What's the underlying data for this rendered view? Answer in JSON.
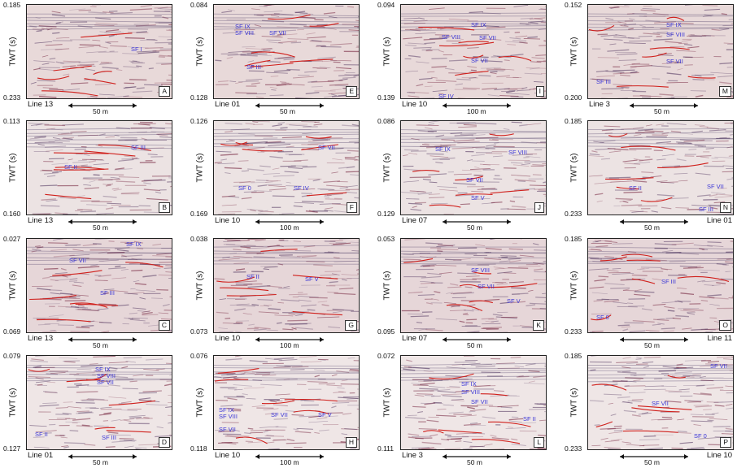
{
  "y_axis_label": "TWT (s)",
  "panels": [
    {
      "id": "A",
      "top": "0.185",
      "bottom": "0.233",
      "line": "Line 13",
      "scale": "50 m",
      "units": [
        "SF I"
      ]
    },
    {
      "id": "B",
      "top": "0.113",
      "bottom": "0.160",
      "line": "Line 13",
      "scale": "50 m",
      "units": [
        "SF III",
        "SF II"
      ]
    },
    {
      "id": "C",
      "top": "0.027",
      "bottom": "0.069",
      "line": "Line 13",
      "scale": "50 m",
      "units": [
        "SF IX",
        "SF VII",
        "SF III"
      ]
    },
    {
      "id": "D",
      "top": "0.079",
      "bottom": "0.127",
      "line": "Line 01",
      "scale": "50 m",
      "units": [
        "SF IX",
        "SF VIII",
        "SF VII",
        "SF II",
        "SF III"
      ]
    },
    {
      "id": "E",
      "top": "0.084",
      "bottom": "0.128",
      "line": "Line 01",
      "scale": "50 m",
      "units": [
        "SF IX",
        "SF VIII",
        "SF VII",
        "SF III"
      ]
    },
    {
      "id": "F",
      "top": "0.126",
      "bottom": "0.169",
      "line": "Line 10",
      "scale": "100 m",
      "units": [
        "SF VII",
        "SF 0",
        "SF IV"
      ]
    },
    {
      "id": "G",
      "top": "0.038",
      "bottom": "0.073",
      "line": "Line 10",
      "scale": "100 m",
      "units": [
        "SF II",
        "SF V"
      ]
    },
    {
      "id": "H",
      "top": "0.076",
      "bottom": "0.118",
      "line": "Line 10",
      "scale": "100 m",
      "units": [
        "SF IX",
        "SF VIII",
        "SF VII",
        "SF VII",
        "SF V"
      ]
    },
    {
      "id": "I",
      "top": "0.094",
      "bottom": "0.139",
      "line": "Line 10",
      "scale": "100 m",
      "units": [
        "SF IX",
        "SF VIII",
        "SF VII",
        "SF VII",
        "SF IV"
      ]
    },
    {
      "id": "J",
      "top": "0.086",
      "bottom": "0.129",
      "line": "Line 07",
      "scale": "50 m",
      "units": [
        "SF IX",
        "SF VIII",
        "SF VII",
        "SF V"
      ]
    },
    {
      "id": "K",
      "top": "0.053",
      "bottom": "0.095",
      "line": "Line 07",
      "scale": "50 m",
      "units": [
        "SF VIII",
        "SF VII",
        "SF V"
      ]
    },
    {
      "id": "L",
      "top": "0.072",
      "bottom": "0.111",
      "line": "Line 3",
      "scale": "50 m",
      "units": [
        "SF IX",
        "SF VIII",
        "SF VII",
        "SF II"
      ]
    },
    {
      "id": "M",
      "top": "0.152",
      "bottom": "0.200",
      "line": "Line 3",
      "scale": "50 m",
      "units": [
        "SF IX",
        "SF VIII",
        "SF VII",
        "SF III"
      ]
    },
    {
      "id": "N",
      "top": "0.185",
      "bottom": "0.233",
      "line": "Line 01",
      "scale": "50 m",
      "units": [
        "SF II",
        "SF VII",
        "SF III"
      ]
    },
    {
      "id": "O",
      "top": "0.185",
      "bottom": "0.233",
      "line": "Line 11",
      "scale": "50 m",
      "units": [
        "SF III",
        "SF 0"
      ]
    },
    {
      "id": "P",
      "top": "0.185",
      "bottom": "0.233",
      "line": "Line 10",
      "scale": "50 m",
      "units": [
        "SF VII",
        "SF VII",
        "SF 0"
      ]
    }
  ]
}
